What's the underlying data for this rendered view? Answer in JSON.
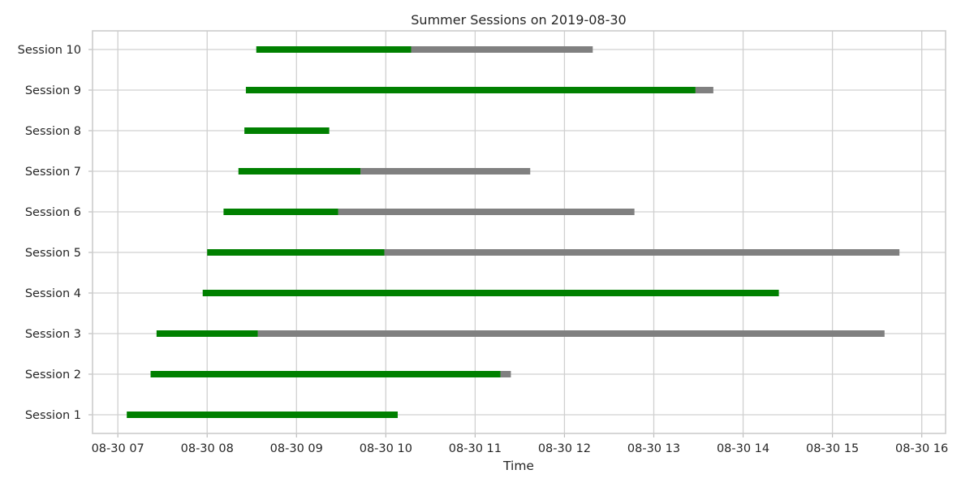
{
  "chart_data": {
    "type": "gantt",
    "title": "Summer Sessions on 2019-08-30",
    "xlabel": "Time",
    "ylabel": "",
    "date": "2019-08-30",
    "x_ticks": [
      "08-30 07",
      "08-30 08",
      "08-30 09",
      "08-30 10",
      "08-30 11",
      "08-30 12",
      "08-30 13",
      "08-30 14",
      "08-30 15",
      "08-30 16"
    ],
    "xlim": [
      "2019-08-30 06:43",
      "2019-08-30 16:16"
    ],
    "grid": true,
    "colors": {
      "active": "#008000",
      "remaining": "#808080"
    },
    "sessions": [
      {
        "name": "Session 1",
        "start": "2019-08-30 07:06",
        "green_end": "2019-08-30 10:08",
        "end": "2019-08-30 10:08"
      },
      {
        "name": "Session 2",
        "start": "2019-08-30 07:22",
        "green_end": "2019-08-30 11:17",
        "end": "2019-08-30 11:24"
      },
      {
        "name": "Session 3",
        "start": "2019-08-30 07:26",
        "green_end": "2019-08-30 08:34",
        "end": "2019-08-30 15:35"
      },
      {
        "name": "Session 4",
        "start": "2019-08-30 07:57",
        "green_end": "2019-08-30 14:24",
        "end": "2019-08-30 14:24"
      },
      {
        "name": "Session 5",
        "start": "2019-08-30 08:00",
        "green_end": "2019-08-30 09:59",
        "end": "2019-08-30 15:45"
      },
      {
        "name": "Session 6",
        "start": "2019-08-30 08:11",
        "green_end": "2019-08-30 09:28",
        "end": "2019-08-30 12:47"
      },
      {
        "name": "Session 7",
        "start": "2019-08-30 08:21",
        "green_end": "2019-08-30 09:43",
        "end": "2019-08-30 11:37"
      },
      {
        "name": "Session 8",
        "start": "2019-08-30 08:25",
        "green_end": "2019-08-30 09:22",
        "end": "2019-08-30 09:22"
      },
      {
        "name": "Session 9",
        "start": "2019-08-30 08:26",
        "green_end": "2019-08-30 13:28",
        "end": "2019-08-30 13:40"
      },
      {
        "name": "Session 10",
        "start": "2019-08-30 08:33",
        "green_end": "2019-08-30 10:17",
        "end": "2019-08-30 12:19"
      }
    ]
  }
}
